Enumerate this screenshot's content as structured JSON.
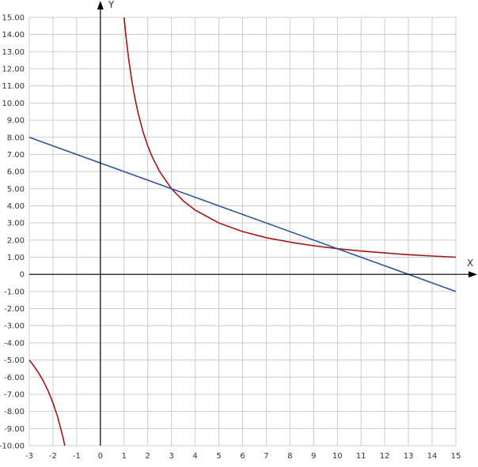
{
  "chart_data": {
    "type": "line",
    "title": "",
    "xlabel": "X",
    "ylabel": "Y",
    "xlim": [
      -3,
      15
    ],
    "ylim": [
      -10,
      15
    ],
    "grid": true,
    "x_ticks": [
      -3,
      -2,
      -1,
      0,
      1,
      2,
      3,
      4,
      5,
      6,
      7,
      8,
      9,
      10,
      11,
      12,
      13,
      14,
      15
    ],
    "x_tick_labels": [
      "-3",
      "-2",
      "-1",
      "0",
      "1",
      "2",
      "3",
      "4",
      "5",
      "6",
      "7",
      "8",
      "9",
      "10",
      "11",
      "12",
      "13",
      "14",
      "15"
    ],
    "y_ticks": [
      15,
      14,
      13,
      12,
      11,
      10,
      9,
      8,
      7,
      6,
      5,
      4,
      3,
      2,
      1,
      0,
      -1,
      -2,
      -3,
      -4,
      -5,
      -6,
      -7,
      -8,
      -9,
      -10
    ],
    "y_tick_labels": [
      "15.00",
      "14.00",
      "13.00",
      "12.00",
      "11.00",
      "10.00",
      "9.00",
      "8.00",
      "7.00",
      "6.00",
      "5.00",
      "4.00",
      "3.00",
      "2.00",
      "1.00",
      "0",
      "-1.00",
      "-2.00",
      "-3.00",
      "-4.00",
      "-5.00",
      "-6.00",
      "-7.00",
      "-8.00",
      "-9.00",
      "-10.00"
    ],
    "series": [
      {
        "color": "#a31515",
        "x": [
          -3,
          -2.8,
          -2.6,
          -2.4,
          -2.2,
          -2.0,
          -1.8,
          -1.6,
          -1.5,
          null,
          1.0,
          1.1,
          1.2,
          1.3,
          1.4,
          1.5,
          1.6,
          1.8,
          2.0,
          2.2,
          2.5,
          3.0,
          3.5,
          4.0,
          5.0,
          6.0,
          7.0,
          8.0,
          9.0,
          10.0,
          11.0,
          12.0,
          13.0,
          14.0,
          15.0
        ],
        "y": [
          -5.0,
          -5.36,
          -5.77,
          -6.25,
          -6.82,
          -7.5,
          -8.33,
          -9.38,
          -10.0,
          null,
          15.0,
          13.64,
          12.5,
          11.54,
          10.71,
          10.0,
          9.38,
          8.33,
          7.5,
          6.82,
          6.0,
          5.0,
          4.29,
          3.75,
          3.0,
          2.5,
          2.14,
          1.88,
          1.67,
          1.5,
          1.36,
          1.25,
          1.15,
          1.07,
          1.0
        ]
      },
      {
        "color": "#2a5599",
        "x": [
          -3,
          15
        ],
        "y": [
          8.0,
          -1.0
        ]
      }
    ]
  }
}
